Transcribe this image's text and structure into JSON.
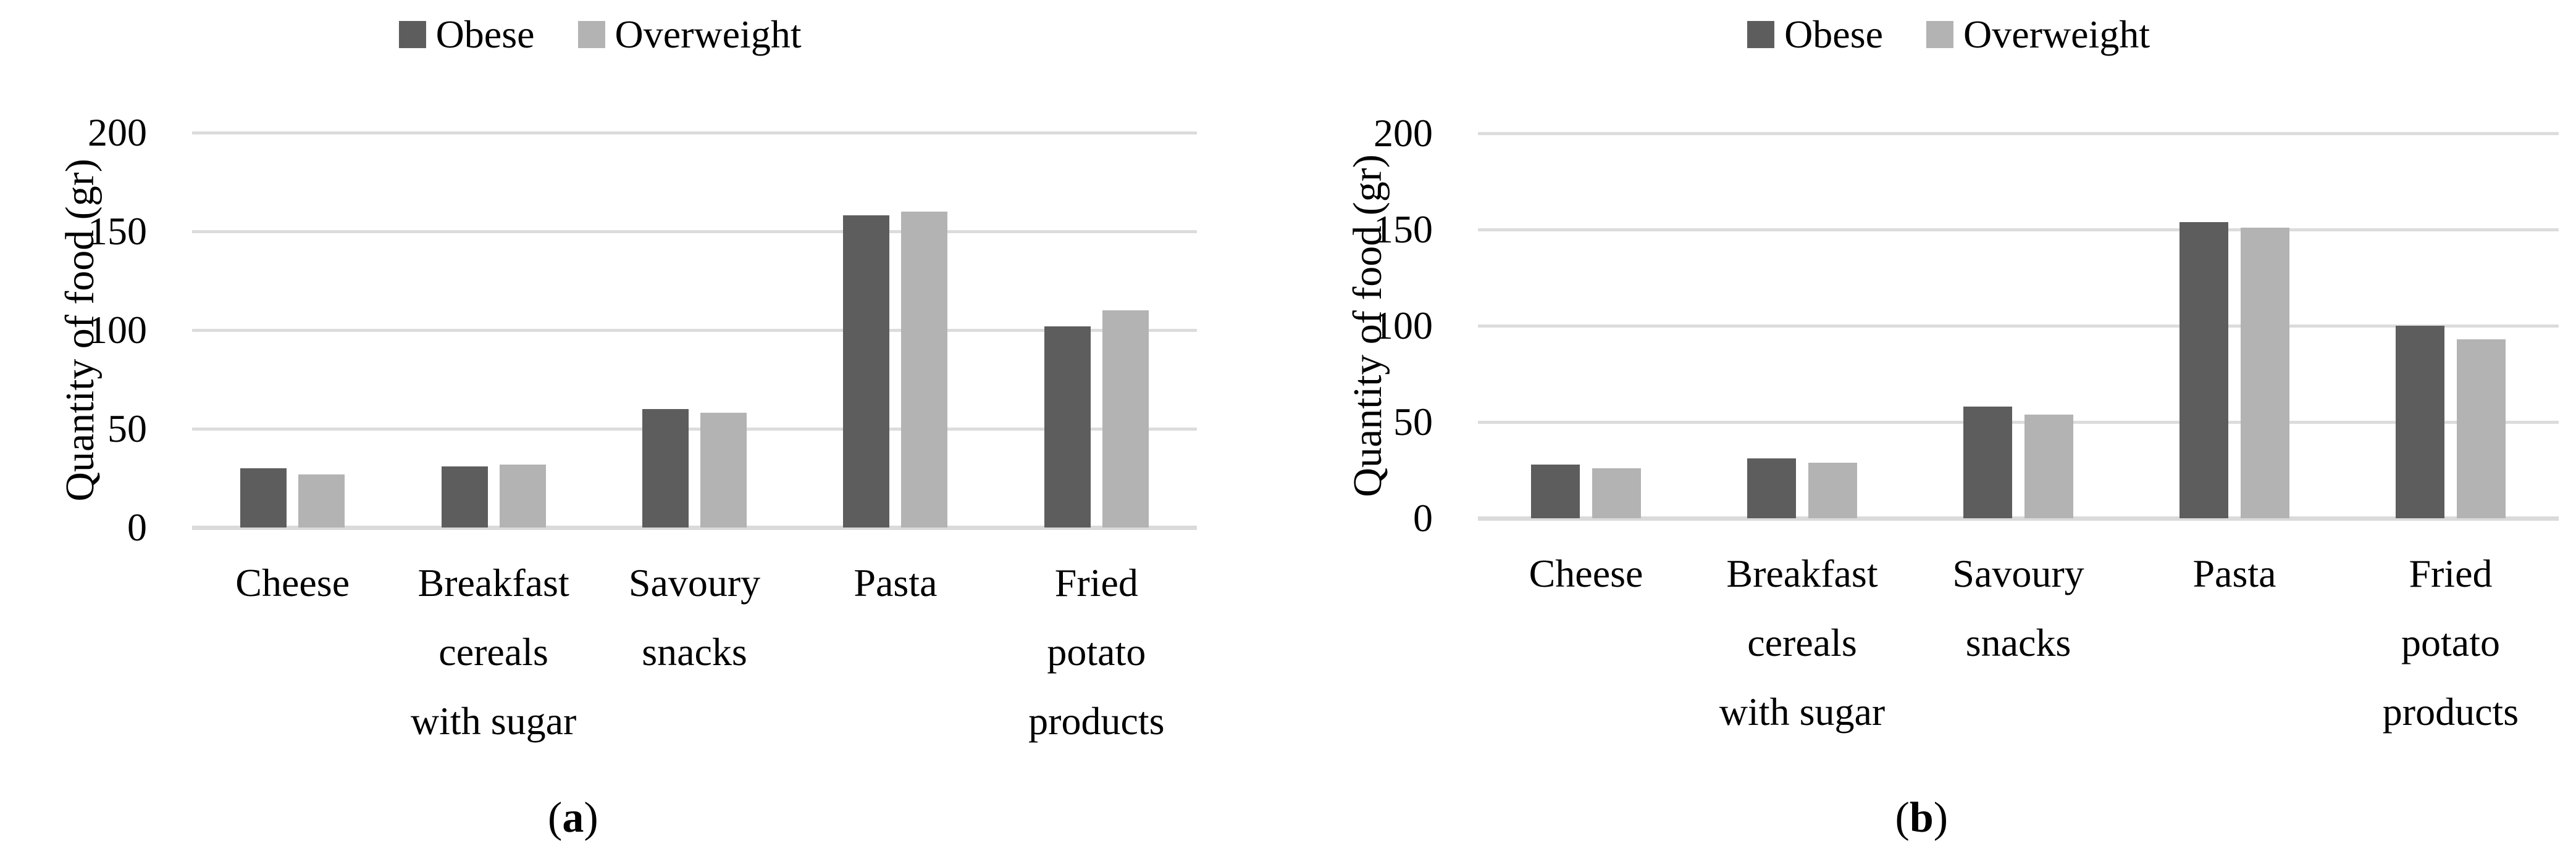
{
  "figure": {
    "background": "#ffffff"
  },
  "colors": {
    "obese": "#5d5d5d",
    "overweight": "#b3b3b3",
    "gridline": "#dcdcdc",
    "text": "#000000"
  },
  "chart_data": [
    {
      "id": "a",
      "type": "bar",
      "title": "",
      "categories": [
        "Cheese",
        "Breakfast\ncereals\nwith sugar",
        "Savoury\nsnacks",
        "Pasta",
        "Fried\npotato\nproducts"
      ],
      "series": [
        {
          "name": "Obese",
          "color": "#5d5d5d",
          "values": [
            30,
            31,
            60,
            158,
            102
          ]
        },
        {
          "name": "Overweight",
          "color": "#b3b3b3",
          "values": [
            27,
            32,
            58,
            160,
            110
          ]
        }
      ],
      "xlabel": "",
      "ylabel": "Quantity of food (gr)",
      "ylim": [
        0,
        200
      ],
      "yticks": [
        0,
        50,
        100,
        150,
        200
      ],
      "grid": "horizontal",
      "legend_position": "top",
      "caption": {
        "open": "(",
        "letter": "a",
        "close": ")"
      }
    },
    {
      "id": "b",
      "type": "bar",
      "title": "",
      "categories": [
        "Cheese",
        "Breakfast\ncereals\nwith sugar",
        "Savoury\nsnacks",
        "Pasta",
        "Fried\npotato\nproducts"
      ],
      "series": [
        {
          "name": "Obese",
          "color": "#5d5d5d",
          "values": [
            28,
            31,
            58,
            154,
            100
          ]
        },
        {
          "name": "Overweight",
          "color": "#b3b3b3",
          "values": [
            26,
            29,
            54,
            151,
            93
          ]
        }
      ],
      "xlabel": "",
      "ylabel": "Quantity of food (gr)",
      "ylim": [
        0,
        200
      ],
      "yticks": [
        0,
        50,
        100,
        150,
        200
      ],
      "grid": "horizontal",
      "legend_position": "top",
      "caption": {
        "open": "(",
        "letter": "b",
        "close": ")"
      }
    }
  ]
}
